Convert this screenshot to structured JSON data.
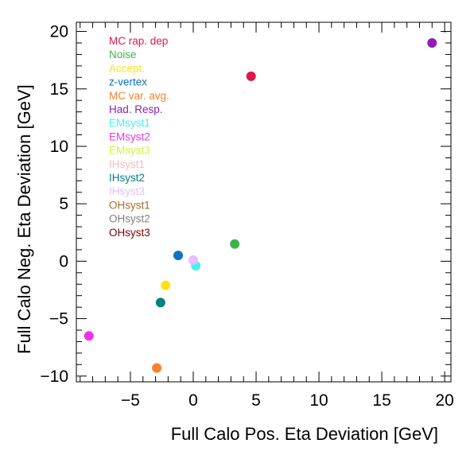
{
  "chart_data": {
    "type": "scatter",
    "title": "",
    "xlabel": "Full Calo Pos. Eta Deviation [GeV]",
    "ylabel": "Full Calo Neg. Eta Deviation [GeV]",
    "xlim": [
      -9.3,
      20.5
    ],
    "ylim": [
      -10.5,
      20.8
    ],
    "xticks": [
      -5,
      0,
      5,
      10,
      15,
      20
    ],
    "yticks": [
      -10,
      -5,
      0,
      5,
      10,
      15,
      20
    ],
    "xtick_labels": [
      "−5",
      "0",
      "5",
      "10",
      "15",
      "20"
    ],
    "ytick_labels": [
      "−10",
      "−5",
      "0",
      "5",
      "10",
      "15",
      "20"
    ],
    "grid": false,
    "legend_position": "upper-left",
    "series": [
      {
        "name": "MC rap. dep",
        "color": "#e0174c",
        "x": [
          4.6
        ],
        "y": [
          16.1
        ]
      },
      {
        "name": "Noise",
        "color": "#3cb44b",
        "x": [
          3.3
        ],
        "y": [
          1.5
        ]
      },
      {
        "name": "Accept.",
        "color": "#ffe119",
        "x": [
          -2.2
        ],
        "y": [
          -2.1
        ]
      },
      {
        "name": "z-vertex",
        "color": "#0d73c2",
        "x": [
          -1.2
        ],
        "y": [
          0.5
        ]
      },
      {
        "name": "MC var. avg.",
        "color": "#f58231",
        "x": [
          -2.9
        ],
        "y": [
          -9.3
        ]
      },
      {
        "name": "Had. Resp.",
        "color": "#911eb4",
        "x": [
          19.0
        ],
        "y": [
          19.0
        ]
      },
      {
        "name": "EMsyst1",
        "color": "#46f0f0",
        "x": [
          0.2
        ],
        "y": [
          -0.4
        ]
      },
      {
        "name": "EMsyst2",
        "color": "#f032e6",
        "x": [
          -8.3
        ],
        "y": [
          -6.5
        ]
      },
      {
        "name": "EMsyst3",
        "color": "#d2f53c",
        "x": [],
        "y": []
      },
      {
        "name": "IHsyst1",
        "color": "#fabebe",
        "x": [],
        "y": []
      },
      {
        "name": "IHsyst2",
        "color": "#008080",
        "x": [
          -2.6
        ],
        "y": [
          -3.6
        ]
      },
      {
        "name": "IHsyst3",
        "color": "#e6beff",
        "x": [
          0.0
        ],
        "y": [
          0.1
        ]
      },
      {
        "name": "OHsyst1",
        "color": "#aa6e28",
        "x": [],
        "y": []
      },
      {
        "name": "OHsyst2",
        "color": "#808080",
        "x": [],
        "y": []
      },
      {
        "name": "OHsyst3",
        "color": "#800000",
        "x": [],
        "y": []
      }
    ]
  }
}
